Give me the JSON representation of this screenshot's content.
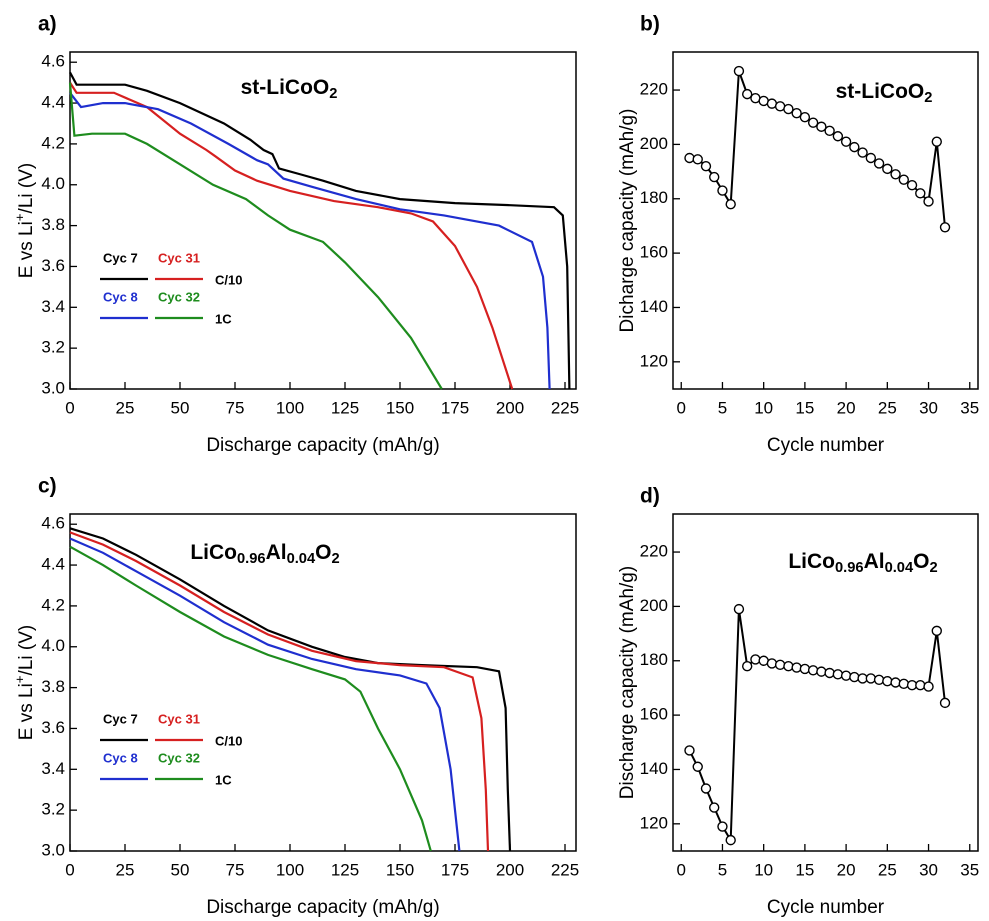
{
  "chart_data": [
    {
      "type": "line",
      "panel_label": "a)",
      "title": [
        {
          "text": "st-LiCoO"
        },
        {
          "text": "2",
          "sub": true
        }
      ],
      "xlabel": [
        {
          "text": "Discharge capacity (mAh/g)"
        }
      ],
      "ylabel": [
        {
          "text": "E vs Li"
        },
        {
          "text": "+",
          "sup": true
        },
        {
          "text": "/Li (V)"
        }
      ],
      "xlim": [
        0,
        230
      ],
      "ylim": [
        3.0,
        4.65
      ],
      "xticks": [
        0,
        25,
        50,
        75,
        100,
        125,
        150,
        175,
        200,
        225
      ],
      "yticks": [
        {
          "value": 3,
          "label": "3.0"
        },
        3.2,
        3.4,
        3.6,
        3.8,
        {
          "value": 4,
          "label": "4.0"
        },
        4.2,
        4.4,
        4.6
      ],
      "legend_rates": [
        "C/10",
        "1C"
      ],
      "series": [
        {
          "name": "Cyc 7",
          "color": "#000000",
          "x": [
            0,
            3,
            25,
            35,
            50,
            70,
            82,
            88,
            92,
            95,
            105,
            115,
            130,
            150,
            175,
            200,
            220,
            224,
            226,
            227
          ],
          "values": [
            4.55,
            4.49,
            4.49,
            4.46,
            4.4,
            4.3,
            4.22,
            4.17,
            4.15,
            4.08,
            4.05,
            4.02,
            3.97,
            3.93,
            3.91,
            3.9,
            3.89,
            3.85,
            3.6,
            3.0
          ]
        },
        {
          "name": "Cyc 31",
          "color": "#d62020",
          "x": [
            0,
            3,
            20,
            35,
            50,
            62,
            66,
            75,
            85,
            100,
            120,
            140,
            155,
            165,
            175,
            185,
            192,
            201
          ],
          "values": [
            4.5,
            4.45,
            4.45,
            4.38,
            4.25,
            4.17,
            4.14,
            4.07,
            4.02,
            3.97,
            3.92,
            3.89,
            3.86,
            3.82,
            3.7,
            3.5,
            3.3,
            3.0
          ]
        },
        {
          "name": "Cyc 8",
          "color": "#1f2fcf",
          "x": [
            0,
            5,
            15,
            25,
            40,
            55,
            72,
            85,
            90,
            97,
            110,
            130,
            150,
            170,
            195,
            210,
            215,
            217,
            218
          ],
          "values": [
            4.45,
            4.38,
            4.4,
            4.4,
            4.37,
            4.3,
            4.2,
            4.12,
            4.1,
            4.03,
            3.99,
            3.93,
            3.88,
            3.85,
            3.8,
            3.72,
            3.55,
            3.3,
            3.0
          ]
        },
        {
          "name": "Cyc 32",
          "color": "#1e8c1e",
          "x": [
            0,
            2,
            10,
            25,
            35,
            50,
            65,
            80,
            90,
            100,
            115,
            125,
            140,
            155,
            169
          ],
          "values": [
            4.5,
            4.24,
            4.25,
            4.25,
            4.2,
            4.1,
            4.0,
            3.93,
            3.85,
            3.78,
            3.72,
            3.62,
            3.45,
            3.25,
            3.0
          ]
        }
      ]
    },
    {
      "type": "marker-line",
      "panel_label": "b)",
      "title": [
        {
          "text": "st-LiCoO"
        },
        {
          "text": "2",
          "sub": true
        }
      ],
      "xlabel": [
        {
          "text": "Cycle number"
        }
      ],
      "ylabel": [
        {
          "text": "Dicharge capacity (mAh/g)"
        }
      ],
      "xlim": [
        -1,
        36
      ],
      "ylim": [
        110,
        234
      ],
      "xticks": [
        0,
        5,
        10,
        15,
        20,
        25,
        30,
        35
      ],
      "yticks": [
        120,
        140,
        160,
        180,
        200,
        220
      ],
      "color": "#000000",
      "x": [
        1,
        2,
        3,
        4,
        5,
        6,
        7,
        8,
        9,
        10,
        11,
        12,
        13,
        14,
        15,
        16,
        17,
        18,
        19,
        20,
        21,
        22,
        23,
        24,
        25,
        26,
        27,
        28,
        29,
        30,
        31,
        32
      ],
      "values": [
        195,
        194.5,
        192,
        188,
        183,
        178,
        227,
        218.5,
        217,
        216,
        215,
        214,
        213,
        211.5,
        210,
        208,
        206.5,
        205,
        203,
        201,
        199,
        197,
        195,
        193,
        191,
        189,
        187,
        185,
        182,
        179,
        201,
        169.5
      ]
    },
    {
      "type": "line",
      "panel_label": "c)",
      "title": [
        {
          "text": "LiCo"
        },
        {
          "text": "0.96",
          "sub": true
        },
        {
          "text": "Al"
        },
        {
          "text": "0.04",
          "sub": true
        },
        {
          "text": "O"
        },
        {
          "text": "2",
          "sub": true
        }
      ],
      "xlabel": [
        {
          "text": "Discharge capacity (mAh/g)"
        }
      ],
      "ylabel": [
        {
          "text": "E vs Li"
        },
        {
          "text": "+",
          "sup": true
        },
        {
          "text": "/Li (V)"
        }
      ],
      "xlim": [
        0,
        230
      ],
      "ylim": [
        3.0,
        4.65
      ],
      "xticks": [
        0,
        25,
        50,
        75,
        100,
        125,
        150,
        175,
        200,
        225
      ],
      "yticks": [
        {
          "value": 3,
          "label": "3.0"
        },
        3.2,
        3.4,
        3.6,
        3.8,
        {
          "value": 4,
          "label": "4.0"
        },
        4.2,
        4.4,
        4.6
      ],
      "legend_rates": [
        "C/10",
        "1C"
      ],
      "series": [
        {
          "name": "Cyc 7",
          "color": "#000000",
          "x": [
            0,
            15,
            30,
            50,
            70,
            90,
            110,
            125,
            140,
            160,
            185,
            195,
            198,
            199,
            200
          ],
          "values": [
            4.58,
            4.53,
            4.45,
            4.33,
            4.2,
            4.08,
            4.0,
            3.95,
            3.92,
            3.91,
            3.9,
            3.88,
            3.7,
            3.3,
            3.0
          ]
        },
        {
          "name": "Cyc 31",
          "color": "#d62020",
          "x": [
            0,
            15,
            30,
            50,
            70,
            90,
            110,
            130,
            150,
            170,
            183,
            187,
            189,
            190
          ],
          "values": [
            4.56,
            4.5,
            4.42,
            4.3,
            4.17,
            4.06,
            3.98,
            3.93,
            3.91,
            3.9,
            3.85,
            3.65,
            3.3,
            3.0
          ]
        },
        {
          "name": "Cyc 8",
          "color": "#1f2fcf",
          "x": [
            0,
            15,
            30,
            50,
            70,
            90,
            110,
            130,
            150,
            162,
            168,
            173,
            177
          ],
          "values": [
            4.53,
            4.46,
            4.37,
            4.25,
            4.12,
            4.01,
            3.94,
            3.89,
            3.86,
            3.82,
            3.7,
            3.4,
            3.0
          ]
        },
        {
          "name": "Cyc 32",
          "color": "#1e8c1e",
          "x": [
            0,
            15,
            30,
            50,
            70,
            90,
            110,
            125,
            132,
            140,
            150,
            160,
            164
          ],
          "values": [
            4.49,
            4.4,
            4.3,
            4.17,
            4.05,
            3.96,
            3.89,
            3.84,
            3.78,
            3.6,
            3.4,
            3.15,
            3.0
          ]
        }
      ]
    },
    {
      "type": "marker-line",
      "panel_label": "d)",
      "title": [
        {
          "text": "LiCo"
        },
        {
          "text": "0.96",
          "sub": true
        },
        {
          "text": "Al"
        },
        {
          "text": "0.04",
          "sub": true
        },
        {
          "text": "O"
        },
        {
          "text": "2",
          "sub": true
        }
      ],
      "xlabel": [
        {
          "text": "Cycle number"
        }
      ],
      "ylabel": [
        {
          "text": "Discharge capacity (mAh/g)"
        }
      ],
      "xlim": [
        -1,
        36
      ],
      "ylim": [
        110,
        234
      ],
      "xticks": [
        0,
        5,
        10,
        15,
        20,
        25,
        30,
        35
      ],
      "yticks": [
        120,
        140,
        160,
        180,
        200,
        220
      ],
      "color": "#000000",
      "x": [
        1,
        2,
        3,
        4,
        5,
        6,
        7,
        8,
        9,
        10,
        11,
        12,
        13,
        14,
        15,
        16,
        17,
        18,
        19,
        20,
        21,
        22,
        23,
        24,
        25,
        26,
        27,
        28,
        29,
        30,
        31,
        32
      ],
      "values": [
        147,
        141,
        133,
        126,
        119,
        114,
        199,
        178,
        180.5,
        180,
        179,
        178.5,
        178,
        177.5,
        177,
        176.5,
        176,
        175.5,
        175,
        174.5,
        174,
        173.5,
        173.5,
        173,
        172.5,
        172,
        171.5,
        171,
        171,
        170.5,
        191,
        164.5
      ]
    }
  ]
}
